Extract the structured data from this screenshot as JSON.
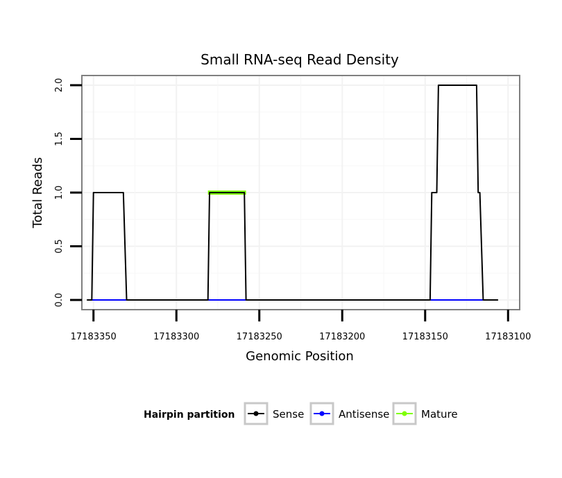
{
  "chart_data": {
    "type": "line",
    "title": "Small RNA-seq Read Density",
    "xlabel": "Genomic Position",
    "ylabel": "Total Reads",
    "x_reversed": true,
    "xlim": [
      17183357,
      17183093
    ],
    "ylim": [
      -0.09,
      2.09
    ],
    "x_ticks": [
      17183350,
      17183300,
      17183250,
      17183200,
      17183150,
      17183100
    ],
    "x_tick_labels": [
      "17183350",
      "17183300",
      "17183250",
      "17183200",
      "17183150",
      "17183100"
    ],
    "y_ticks": [
      0,
      0.5,
      1,
      1.5,
      2
    ],
    "y_tick_labels": [
      "0.0",
      "0.5",
      "1.0",
      "1.5",
      "2.0"
    ],
    "grid": true,
    "legend_position": "bottom",
    "legend_title": "Hairpin partition",
    "series": [
      {
        "name": "Sense",
        "color": "#000000",
        "points": [
          [
            17183354,
            0
          ],
          [
            17183351,
            0
          ],
          [
            17183350,
            1
          ],
          [
            17183332,
            1
          ],
          [
            17183330,
            0
          ],
          [
            17183281,
            0
          ],
          [
            17183280,
            1
          ],
          [
            17183259,
            1
          ],
          [
            17183258,
            0
          ],
          [
            17183147,
            0
          ],
          [
            17183146,
            1
          ],
          [
            17183143,
            1
          ],
          [
            17183142,
            2
          ],
          [
            17183119,
            2
          ],
          [
            17183118,
            1
          ],
          [
            17183117,
            1
          ],
          [
            17183115,
            0
          ],
          [
            17183106,
            0
          ]
        ]
      },
      {
        "name": "Antisense",
        "color": "#0000ff",
        "points": [
          [
            17183351,
            0
          ],
          [
            17183330,
            0
          ],
          [
            17183280,
            0
          ],
          [
            17183258,
            0
          ],
          [
            17183146,
            0
          ],
          [
            17183115,
            0
          ]
        ]
      },
      {
        "name": "Mature",
        "color": "#7fff00",
        "points": [
          [
            17183281,
            1
          ],
          [
            17183258,
            1
          ]
        ]
      }
    ]
  }
}
